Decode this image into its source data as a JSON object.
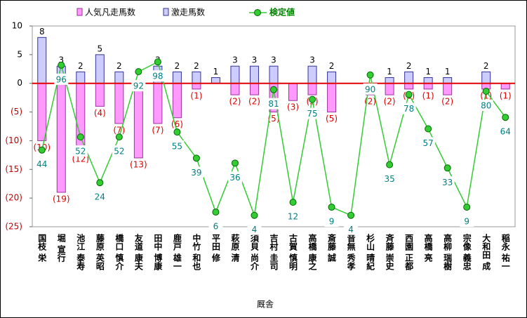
{
  "chart_data": {
    "type": "bar_line",
    "x_label": "厩舎",
    "categories": [
      "国枝 栄",
      "堀 宣行",
      "池江 泰寿",
      "藤原 英昭",
      "橋口 慎介",
      "友道 康夫",
      "田中 博康",
      "鹿戸 雄一",
      "中竹 和也",
      "平田 修",
      "萩原 清",
      "須貝 尚介",
      "吉村 圭司",
      "古賀 慎明",
      "高橋 康之",
      "斎藤 誠",
      "音無 秀孝",
      "杉山 晴紀",
      "斉藤 崇史",
      "西園 正都",
      "高橋 亮",
      "高柳 瑞樹",
      "宗像 義忠",
      "大和田 成",
      "稲永 祐一"
    ],
    "ylim": [
      -25,
      10
    ],
    "yticks": [
      10,
      5,
      0,
      {
        "value": -5,
        "label": "(5)"
      },
      {
        "value": -10,
        "label": "(10)"
      },
      {
        "value": -15,
        "label": "(15)"
      },
      {
        "value": -20,
        "label": "(20)"
      },
      {
        "value": -25,
        "label": "(25)"
      }
    ],
    "y2lim": [
      -3,
      120
    ],
    "legend": "top",
    "series": [
      {
        "name": "人気凡走馬数",
        "color": "#ff99ff",
        "values": [
          -10,
          -19,
          -12,
          -4,
          -7,
          -13,
          -7,
          -6,
          -1,
          0,
          -2,
          -2,
          -5,
          -3,
          -2,
          -5,
          0,
          -2,
          -2,
          -1,
          -1,
          -2,
          0,
          -1,
          -1
        ],
        "value_labels": [
          "(10)",
          "(19)",
          "(12)",
          "(4)",
          "(7)",
          "(13)",
          "(7)",
          "(6)",
          "(1)",
          null,
          "(2)",
          "(2)",
          "(5)",
          "(3)",
          "(2)",
          "(5)",
          null,
          "(2)",
          "(2)",
          "(1)",
          "(1)",
          "(2)",
          null,
          "(1)",
          "(1)"
        ]
      },
      {
        "name": "激走馬数",
        "color": "#ccccff",
        "values": [
          8,
          3,
          2,
          5,
          2,
          0,
          3,
          2,
          2,
          1,
          3,
          3,
          3,
          0,
          3,
          2,
          0,
          0,
          1,
          2,
          1,
          1,
          0,
          2,
          0
        ],
        "value_labels": [
          "8",
          "3",
          "2",
          "5",
          "2",
          null,
          "3",
          "2",
          "2",
          "1",
          "3",
          "3",
          "3",
          null,
          "3",
          "2",
          null,
          null,
          "1",
          "2",
          "1",
          "1",
          null,
          "2",
          null
        ]
      },
      {
        "name": "検定値",
        "color": "#33cc33",
        "axis": "y2",
        "values": [
          44,
          96,
          52,
          24,
          52,
          92,
          98,
          55,
          39,
          6,
          36,
          4,
          81,
          12,
          75,
          9,
          4,
          90,
          35,
          78,
          57,
          33,
          9,
          80,
          64
        ]
      }
    ]
  }
}
